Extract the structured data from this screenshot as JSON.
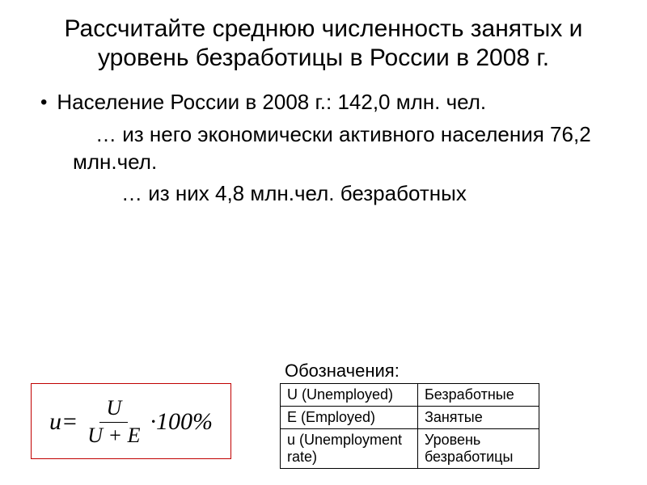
{
  "title": "Рассчитайте среднюю численность занятых и уровень безработицы в России в 2008 г.",
  "bullet1": "Население России в 2008 г.: 142,0  млн. чел.",
  "sub1": "… из него экономически активного населения 76,2 млн.чел.",
  "sub2": "… из них 4,8 млн.чел. безработных",
  "formula": {
    "lhs": "u",
    "eq": " = ",
    "num": "U",
    "den": "U + E",
    "tail": "·100%"
  },
  "legend_title": "Обозначения:",
  "legend": [
    {
      "sym": "U (Unemployed)",
      "desc": "Безработные"
    },
    {
      "sym": "E (Employed)",
      "desc": "Занятые"
    },
    {
      "sym": "u (Unemployment rate)",
      "desc": "Уровень безработицы"
    }
  ],
  "colors": {
    "formula_border": "#c00000",
    "text": "#000000",
    "background": "#ffffff"
  }
}
